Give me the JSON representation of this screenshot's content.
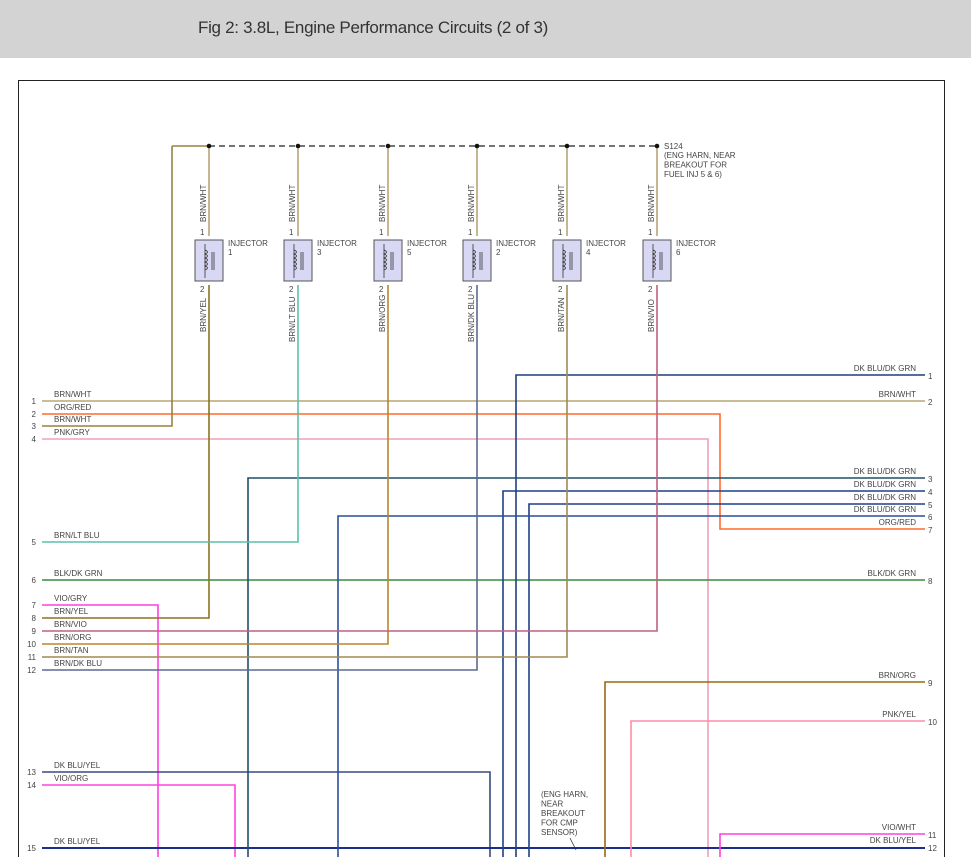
{
  "header": {
    "title": "Fig 2: 3.8L, Engine Performance Circuits (2 of 3)"
  },
  "splice": {
    "id": "S124",
    "note": [
      "(ENG HARN, NEAR",
      "BREAKOUT FOR",
      "FUEL INJ 5 & 6)"
    ]
  },
  "injectors": [
    {
      "label": "INJECTOR",
      "number": "1",
      "pin_top": "1",
      "pin_bottom": "2",
      "wire_top": "BRN/WHT",
      "wire_bottom": "BRN/YEL"
    },
    {
      "label": "INJECTOR",
      "number": "3",
      "pin_top": "1",
      "pin_bottom": "2",
      "wire_top": "BRN/WHT",
      "wire_bottom": "BRN/LT BLU"
    },
    {
      "label": "INJECTOR",
      "number": "5",
      "pin_top": "1",
      "pin_bottom": "2",
      "wire_top": "BRN/WHT",
      "wire_bottom": "BRN/ORG"
    },
    {
      "label": "INJECTOR",
      "number": "2",
      "pin_top": "1",
      "pin_bottom": "2",
      "wire_top": "BRN/WHT",
      "wire_bottom": "BRN/DK BLU"
    },
    {
      "label": "INJECTOR",
      "number": "4",
      "pin_top": "1",
      "pin_bottom": "2",
      "wire_top": "BRN/WHT",
      "wire_bottom": "BRN/TAN"
    },
    {
      "label": "INJECTOR",
      "number": "6",
      "pin_top": "1",
      "pin_bottom": "2",
      "wire_top": "BRN/WHT",
      "wire_bottom": "BRN/VIO"
    }
  ],
  "left_pins": [
    {
      "pin": "1",
      "wire": "BRN/WHT",
      "color": "#b9a575"
    },
    {
      "pin": "2",
      "wire": "ORG/RED",
      "color": "#ff6a2a"
    },
    {
      "pin": "3",
      "wire": "BRN/WHT",
      "color": "#9a8040"
    },
    {
      "pin": "4",
      "wire": "PNK/GRY",
      "color": "#f2a0b4"
    },
    {
      "pin": "5",
      "wire": "BRN/LT BLU",
      "color": "#5cbfa8"
    },
    {
      "pin": "6",
      "wire": "BLK/DK GRN",
      "color": "#3c8a3c"
    },
    {
      "pin": "7",
      "wire": "VIO/GRY",
      "color": "#ff40e0"
    },
    {
      "pin": "8",
      "wire": "BRN/YEL",
      "color": "#8a7420"
    },
    {
      "pin": "9",
      "wire": "BRN/VIO",
      "color": "#c06080"
    },
    {
      "pin": "10",
      "wire": "BRN/ORG",
      "color": "#b8862c"
    },
    {
      "pin": "11",
      "wire": "BRN/TAN",
      "color": "#a08a50"
    },
    {
      "pin": "12",
      "wire": "BRN/DK BLU",
      "color": "#4a5a80"
    },
    {
      "pin": "13",
      "wire": "DK BLU/YEL",
      "color": "#3a4a80"
    },
    {
      "pin": "14",
      "wire": "VIO/ORG",
      "color": "#ff44dd"
    },
    {
      "pin": "15",
      "wire": "DK BLU/YEL",
      "color": "#1a2f8a"
    }
  ],
  "right_pins": [
    {
      "pin": "1",
      "wire": "DK BLU/DK GRN",
      "color": "#1f3f7a"
    },
    {
      "pin": "2",
      "wire": "BRN/WHT",
      "color": "#b9a575"
    },
    {
      "pin": "3",
      "wire": "DK BLU/DK GRN",
      "color": "#1f4f6a"
    },
    {
      "pin": "4",
      "wire": "DK BLU/DK GRN",
      "color": "#1f3f8a"
    },
    {
      "pin": "5",
      "wire": "DK BLU/DK GRN",
      "color": "#1f3f8a"
    },
    {
      "pin": "6",
      "wire": "DK BLU/DK GRN",
      "color": "#2a4f9a"
    },
    {
      "pin": "7",
      "wire": "ORG/RED",
      "color": "#ff6a2a"
    },
    {
      "pin": "8",
      "wire": "BLK/DK GRN",
      "color": "#3c8a3c"
    },
    {
      "pin": "9",
      "wire": "BRN/ORG",
      "color": "#9a6a10"
    },
    {
      "pin": "10",
      "wire": "PNK/YEL",
      "color": "#ff8aa8"
    },
    {
      "pin": "11",
      "wire": "VIO/WHT",
      "color": "#ff40e0"
    },
    {
      "pin": "12",
      "wire": "DK BLU/YEL",
      "color": "#1a2f8a"
    }
  ],
  "cmp_note": [
    "(ENG HARN,",
    "NEAR",
    "BREAKOUT",
    "FOR CMP",
    "SENSOR)"
  ],
  "colors": {
    "header_bg": "#d3d3d3",
    "injector_fill": "#d8d8f4",
    "pin_label": "#444444",
    "injector_number": "#c03060"
  }
}
